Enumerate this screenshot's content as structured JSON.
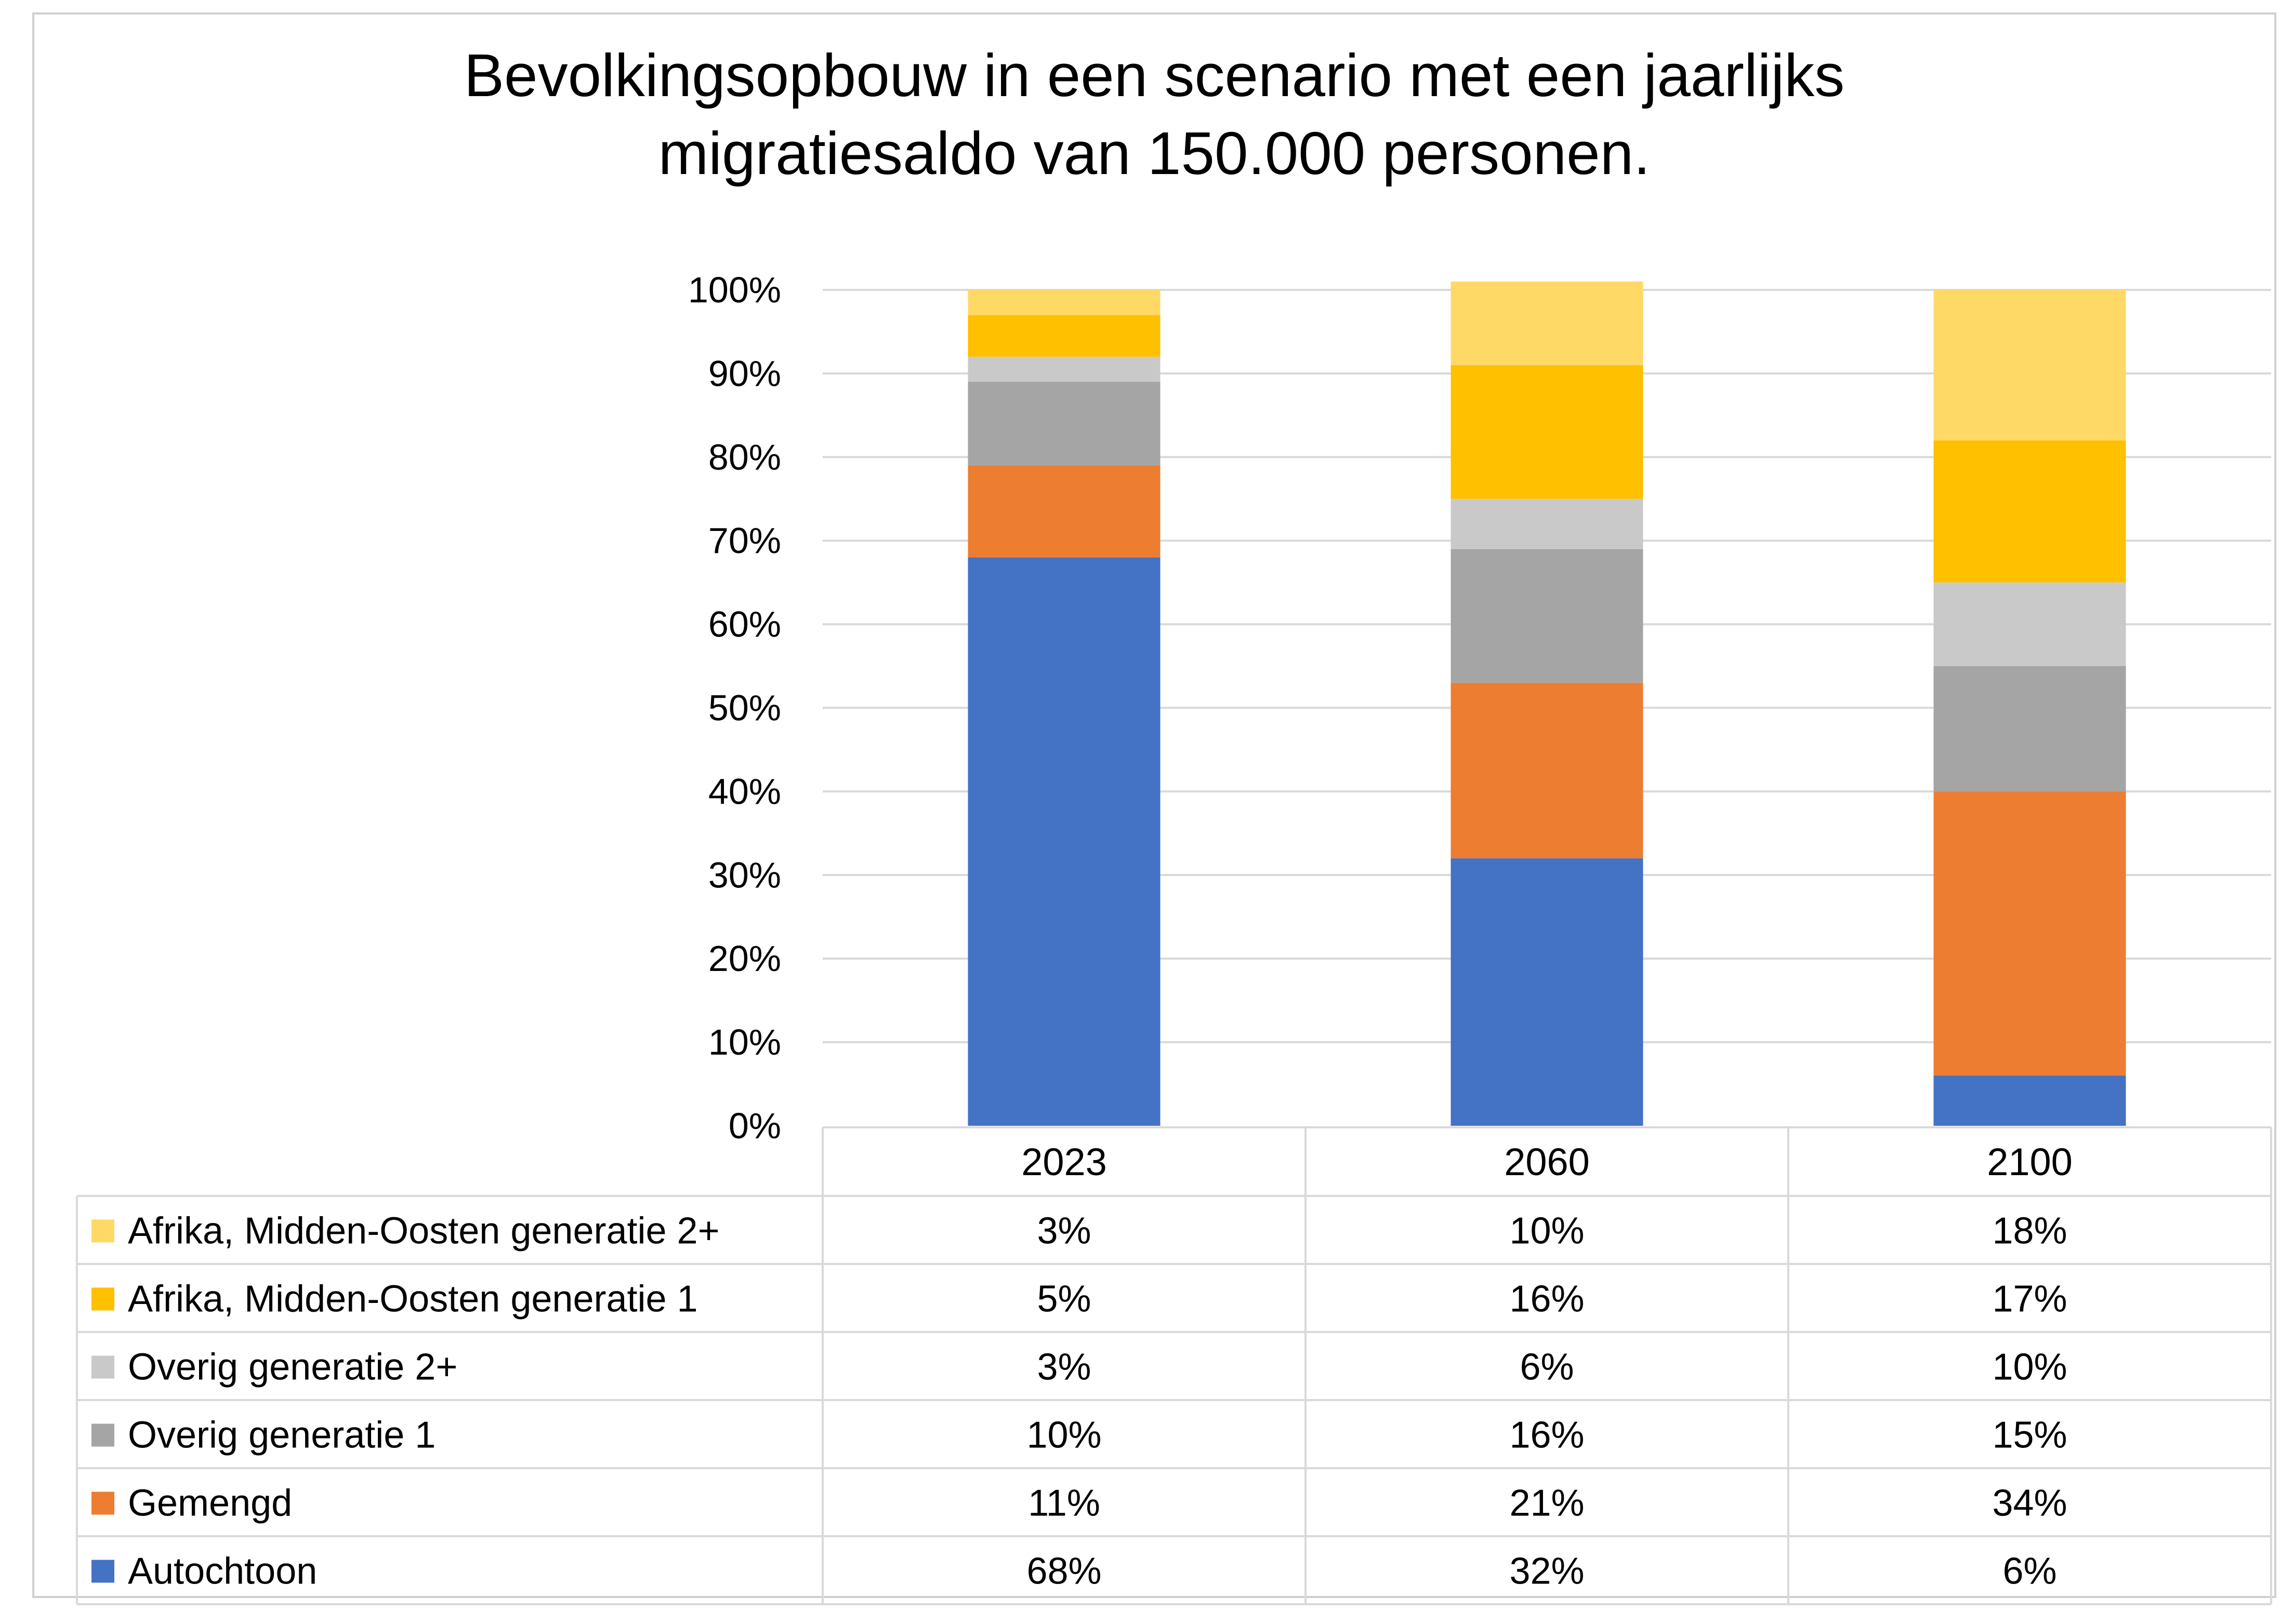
{
  "chart_data": {
    "type": "bar",
    "stacked": true,
    "stack_mode": "percent",
    "title_lines": [
      "Bevolkingsopbouw in een scenario met een jaarlijks",
      "migratiesaldo van 150.000 personen."
    ],
    "categories": [
      "2023",
      "2060",
      "2100"
    ],
    "y_ticks": [
      "0%",
      "10%",
      "20%",
      "30%",
      "40%",
      "50%",
      "60%",
      "70%",
      "80%",
      "90%",
      "100%"
    ],
    "ylim": [
      0,
      100
    ],
    "grid": true,
    "legend": "data-table-below",
    "series": [
      {
        "name": "Autochtoon",
        "color": "#4472c4",
        "values": [
          68,
          32,
          6
        ],
        "labels": [
          "68%",
          "32%",
          "6%"
        ]
      },
      {
        "name": "Gemengd",
        "color": "#ed7d31",
        "values": [
          11,
          21,
          34
        ],
        "labels": [
          "11%",
          "21%",
          "34%"
        ]
      },
      {
        "name": "Overig generatie 1",
        "color": "#a5a5a5",
        "values": [
          10,
          16,
          15
        ],
        "labels": [
          "10%",
          "16%",
          "15%"
        ]
      },
      {
        "name": "Overig generatie 2+",
        "color": "#c9c9c9",
        "values": [
          3,
          6,
          10
        ],
        "labels": [
          "3%",
          "6%",
          "10%"
        ]
      },
      {
        "name": "Afrika, Midden-Oosten generatie 1",
        "color": "#ffc000",
        "values": [
          5,
          16,
          17
        ],
        "labels": [
          "5%",
          "16%",
          "17%"
        ]
      },
      {
        "name": "Afrika, Midden-Oosten generatie 2+",
        "color": "#ffd966",
        "values": [
          3,
          10,
          18
        ],
        "labels": [
          "3%",
          "10%",
          "18%"
        ]
      }
    ]
  }
}
